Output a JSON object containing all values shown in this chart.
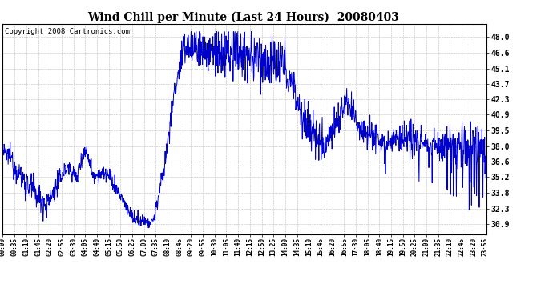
{
  "title": "Wind Chill per Minute (Last 24 Hours)  20080403",
  "copyright": "Copyright 2008 Cartronics.com",
  "line_color": "#0000cc",
  "bg_color": "#ffffff",
  "plot_bg_color": "#ffffff",
  "grid_color": "#bbbbbb",
  "yticks": [
    30.9,
    32.3,
    33.8,
    35.2,
    36.6,
    38.0,
    39.5,
    40.9,
    42.3,
    43.7,
    45.1,
    46.6,
    48.0
  ],
  "ylim": [
    30.0,
    49.2
  ],
  "xtick_labels": [
    "00:00",
    "00:35",
    "01:10",
    "01:45",
    "02:20",
    "02:55",
    "03:30",
    "04:05",
    "04:40",
    "05:15",
    "05:50",
    "06:25",
    "07:00",
    "07:35",
    "08:10",
    "08:45",
    "09:20",
    "09:55",
    "10:30",
    "11:05",
    "11:40",
    "12:15",
    "12:50",
    "13:25",
    "14:00",
    "14:35",
    "15:10",
    "15:45",
    "16:20",
    "16:55",
    "17:30",
    "18:05",
    "18:40",
    "19:15",
    "19:50",
    "20:25",
    "21:00",
    "21:35",
    "22:10",
    "22:45",
    "23:20",
    "23:55"
  ],
  "title_fontsize": 10,
  "copyright_fontsize": 6.5,
  "tick_fontsize": 7,
  "xtick_fontsize": 5.5
}
